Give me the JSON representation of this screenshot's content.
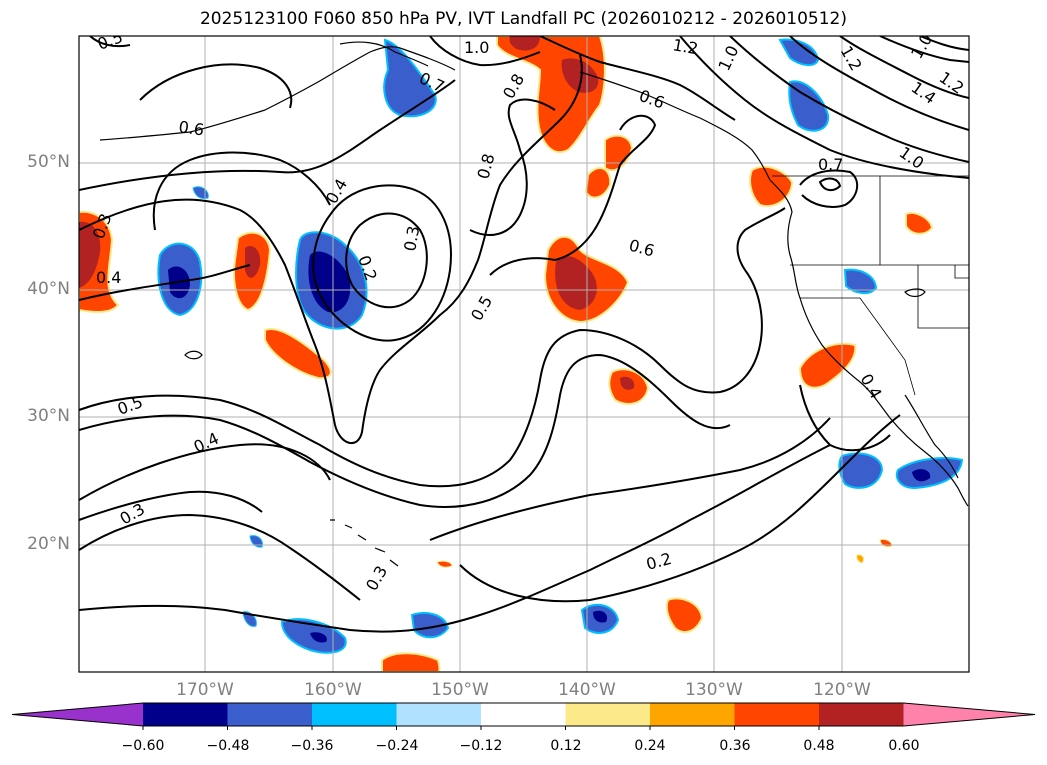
{
  "title": "2025123100 F060 850 hPa PV, IVT Landfall PC (2026010212 - 2026010512)",
  "lat_labels": [
    "50°N",
    "40°N",
    "30°N",
    "20°N"
  ],
  "lon_labels": [
    "170°W",
    "160°W",
    "150°W",
    "140°W",
    "130°W",
    "120°W"
  ],
  "colorbar": {
    "ticks": [
      "−0.60",
      "−0.48",
      "−0.36",
      "−0.24",
      "−0.12",
      "0.12",
      "0.24",
      "0.36",
      "0.48",
      "0.60"
    ],
    "colors": [
      "#9932cc",
      "#00008b",
      "#3a5fcd",
      "#00bfff",
      "#b0e2ff",
      "#ffffff",
      "#fce98a",
      "#ffa500",
      "#ff4500",
      "#b22222",
      "#ff82ab"
    ]
  },
  "contour_labels": [
    "0.5",
    "1.0",
    "1.2",
    "1.0",
    "0.7",
    "0.6",
    "0.8",
    "0.6",
    "1.2",
    "1.4",
    "1.0",
    "0.7",
    "0.8",
    "0.4",
    "0.2",
    "0.3",
    "0.3",
    "0.4",
    "0.5",
    "0.6",
    "0.5",
    "0.4",
    "0.3",
    "0.3",
    "0.2",
    "0.4",
    "1.0",
    "1.2"
  ]
}
